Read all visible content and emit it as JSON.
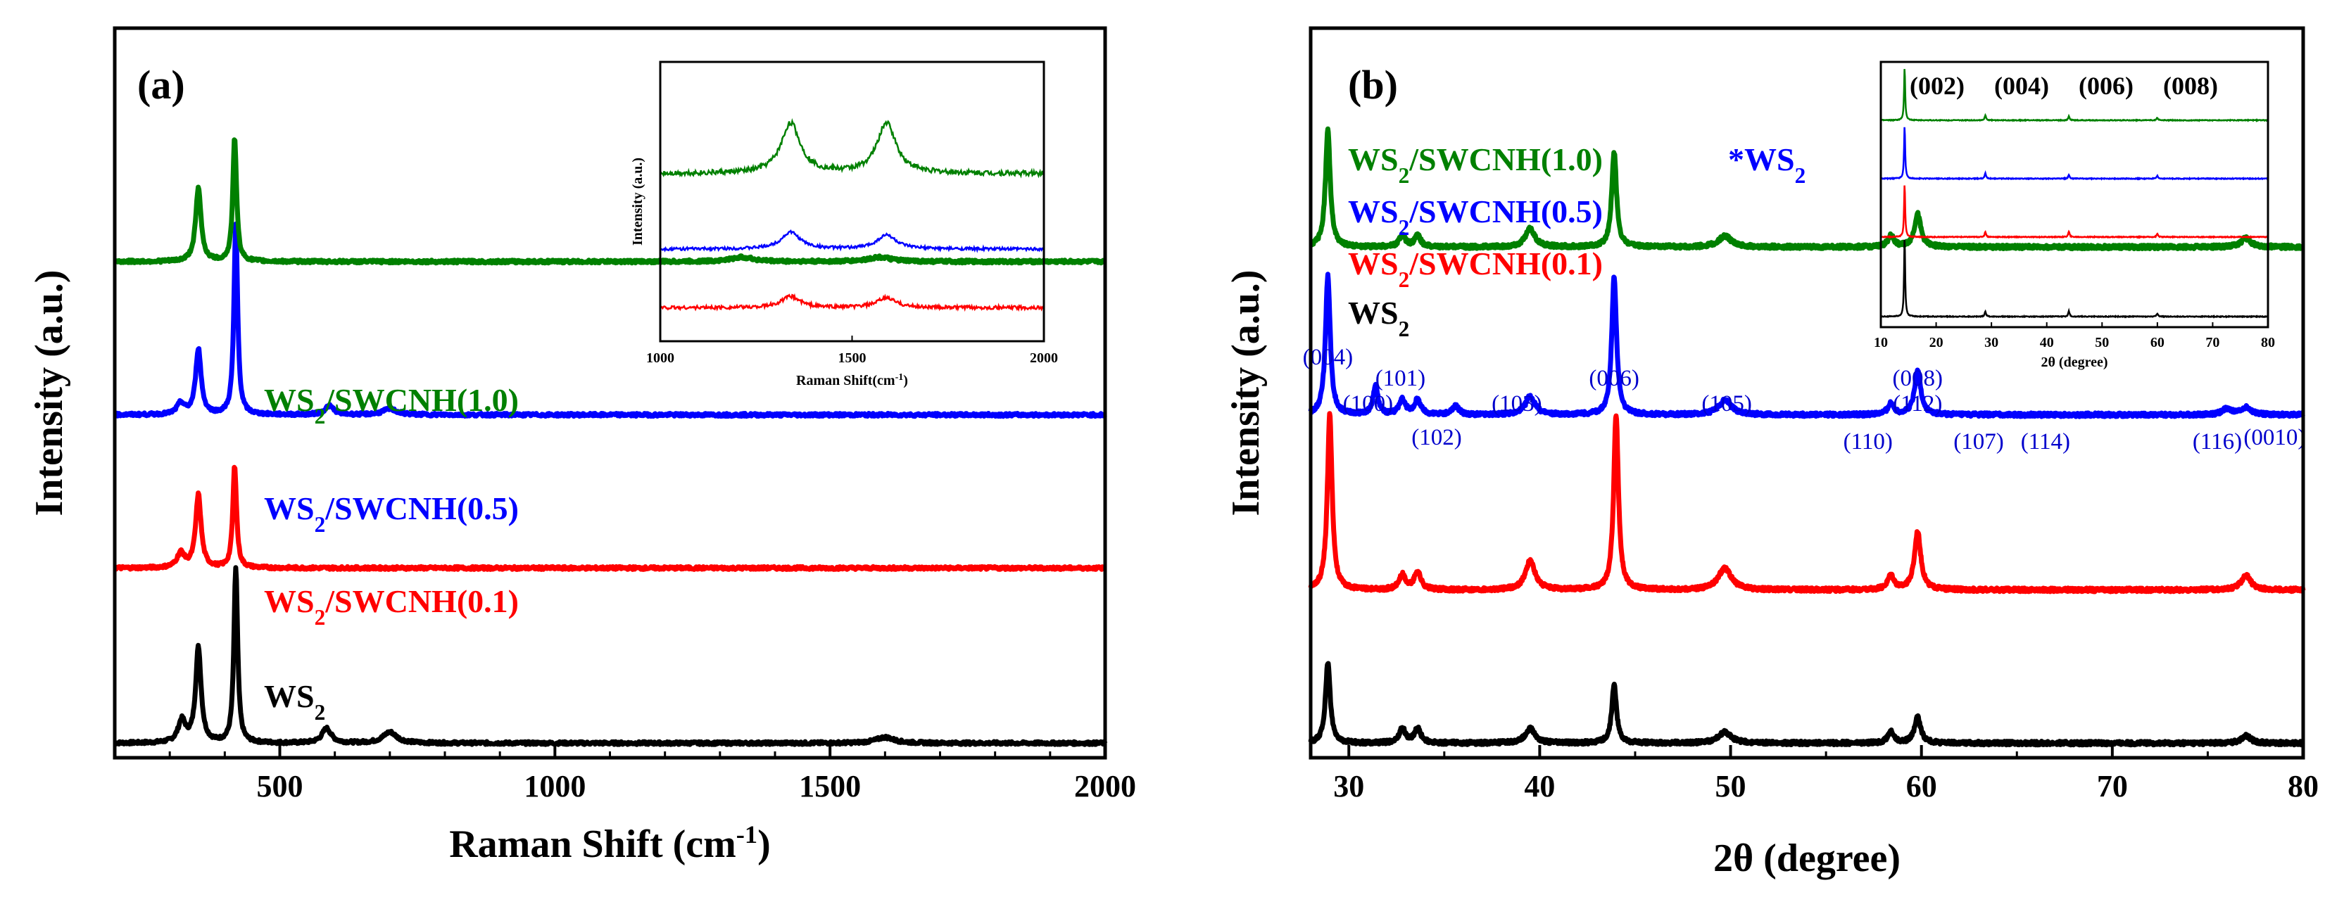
{
  "colors": {
    "WS2": "#000000",
    "WS2/SWCNH(0.1)": "#ff0000",
    "WS2/SWCNH(0.5)": "#0000ff",
    "WS2/SWCNH(1.0)": "#008000",
    "peak_label": "#0000cc"
  },
  "chart_data": [
    {
      "panel": "(a)",
      "type": "line",
      "xlabel": "Raman Shift (cm-1)",
      "ylabel": "Intensity (a.u.)",
      "xlim": [
        200,
        2000
      ],
      "xticks": [
        "500",
        "1000",
        "1500",
        "2000"
      ],
      "series": [
        {
          "name": "WS2",
          "label_main": "WS",
          "label_sub": "2",
          "label_rest": "",
          "color": "#000000",
          "baseline": 0.02,
          "peaks": [
            {
              "x": 352,
              "h": 0.13,
              "w": 6
            },
            {
              "x": 420,
              "h": 0.24,
              "w": 4
            },
            {
              "x": 322,
              "h": 0.03,
              "w": 8
            },
            {
              "x": 585,
              "h": 0.02,
              "w": 10
            },
            {
              "x": 700,
              "h": 0.015,
              "w": 15
            },
            {
              "x": 1600,
              "h": 0.008,
              "w": 20
            }
          ]
        },
        {
          "name": "WS2/SWCNH(0.1)",
          "label_main": "WS",
          "label_sub": "2",
          "label_rest": "/SWCNH(0.1)",
          "color": "#ff0000",
          "baseline": 0.26,
          "peaks": [
            {
              "x": 352,
              "h": 0.1,
              "w": 6
            },
            {
              "x": 418,
              "h": 0.14,
              "w": 4
            },
            {
              "x": 320,
              "h": 0.02,
              "w": 8
            }
          ]
        },
        {
          "name": "WS2/SWCNH(0.5)",
          "label_main": "WS",
          "label_sub": "2",
          "label_rest": "/SWCNH(0.5)",
          "color": "#0000ff",
          "baseline": 0.47,
          "peaks": [
            {
              "x": 352,
              "h": 0.09,
              "w": 6
            },
            {
              "x": 420,
              "h": 0.26,
              "w": 4
            },
            {
              "x": 320,
              "h": 0.015,
              "w": 8
            },
            {
              "x": 590,
              "h": 0.012,
              "w": 10
            },
            {
              "x": 700,
              "h": 0.008,
              "w": 15
            }
          ]
        },
        {
          "name": "WS2/SWCNH(1.0)",
          "label_main": "WS",
          "label_sub": "2",
          "label_rest": "/SWCNH(1.0)",
          "color": "#008000",
          "baseline": 0.68,
          "peaks": [
            {
              "x": 352,
              "h": 0.1,
              "w": 6
            },
            {
              "x": 418,
              "h": 0.17,
              "w": 4
            },
            {
              "x": 1340,
              "h": 0.006,
              "w": 25
            },
            {
              "x": 1590,
              "h": 0.006,
              "w": 25
            }
          ]
        }
      ],
      "inset": {
        "xlabel": "Raman Shift(cm-1)",
        "ylabel": "Intensity (a.u.)",
        "xlim": [
          1000,
          2000
        ],
        "xticks": [
          "1000",
          "1500",
          "2000"
        ],
        "series": [
          {
            "name": "WS2/SWCNH(1.0)",
            "color": "#008000",
            "baseline": 0.6,
            "noise": 0.018,
            "peaks": [
              {
                "x": 1340,
                "h": 0.18,
                "w": 30
              },
              {
                "x": 1590,
                "h": 0.18,
                "w": 30
              }
            ]
          },
          {
            "name": "WS2/SWCNH(0.5)",
            "color": "#0000ff",
            "baseline": 0.33,
            "noise": 0.01,
            "peaks": [
              {
                "x": 1340,
                "h": 0.06,
                "w": 30
              },
              {
                "x": 1590,
                "h": 0.05,
                "w": 30
              }
            ]
          },
          {
            "name": "WS2/SWCNH(0.1)",
            "color": "#ff0000",
            "baseline": 0.12,
            "noise": 0.012,
            "peaks": [
              {
                "x": 1340,
                "h": 0.04,
                "w": 30
              },
              {
                "x": 1590,
                "h": 0.035,
                "w": 30
              }
            ]
          }
        ]
      }
    },
    {
      "panel": "(b)",
      "type": "line",
      "xlabel": "2θ (degree)",
      "ylabel": "Intensity (a.u.)",
      "xlim": [
        28,
        80
      ],
      "xticks": [
        "30",
        "40",
        "50",
        "60",
        "70",
        "80"
      ],
      "legend": [
        {
          "label_main": "WS",
          "label_sub": "2",
          "label_rest": "/SWCNH(1.0)",
          "color": "#008000"
        },
        {
          "label_main": "WS",
          "label_sub": "2",
          "label_rest": "/SWCNH(0.5)",
          "color": "#0000ff"
        },
        {
          "label_main": "WS",
          "label_sub": "2",
          "label_rest": "/SWCNH(0.1)",
          "color": "#ff0000"
        },
        {
          "label_main": "WS",
          "label_sub": "2",
          "label_rest": "",
          "color": "#000000"
        }
      ],
      "star_note": {
        "main": "*WS",
        "sub": "2"
      },
      "series": [
        {
          "name": "WS2",
          "color": "#000000",
          "baseline": 0.02,
          "peaks": [
            {
              "x": 28.9,
              "h": 0.11,
              "w": 0.15
            },
            {
              "x": 32.8,
              "h": 0.02,
              "w": 0.2
            },
            {
              "x": 33.6,
              "h": 0.02,
              "w": 0.2
            },
            {
              "x": 39.5,
              "h": 0.02,
              "w": 0.3
            },
            {
              "x": 43.9,
              "h": 0.08,
              "w": 0.15
            },
            {
              "x": 49.7,
              "h": 0.015,
              "w": 0.4
            },
            {
              "x": 58.4,
              "h": 0.015,
              "w": 0.2
            },
            {
              "x": 59.8,
              "h": 0.035,
              "w": 0.2
            },
            {
              "x": 77,
              "h": 0.01,
              "w": 0.3
            }
          ]
        },
        {
          "name": "WS2/SWCNH(0.1)",
          "color": "#ff0000",
          "baseline": 0.23,
          "peaks": [
            {
              "x": 29.0,
              "h": 0.24,
              "w": 0.15
            },
            {
              "x": 32.8,
              "h": 0.02,
              "w": 0.2
            },
            {
              "x": 33.6,
              "h": 0.025,
              "w": 0.2
            },
            {
              "x": 39.5,
              "h": 0.04,
              "w": 0.3
            },
            {
              "x": 44.0,
              "h": 0.24,
              "w": 0.15
            },
            {
              "x": 49.7,
              "h": 0.03,
              "w": 0.4
            },
            {
              "x": 58.4,
              "h": 0.02,
              "w": 0.2
            },
            {
              "x": 59.8,
              "h": 0.08,
              "w": 0.2
            },
            {
              "x": 77,
              "h": 0.02,
              "w": 0.3
            }
          ]
        },
        {
          "name": "WS2/SWCNH(0.5)",
          "color": "#0000ff",
          "baseline": 0.47,
          "peaks": [
            {
              "x": 28.9,
              "h": 0.19,
              "w": 0.15
            },
            {
              "x": 31.4,
              "h": 0.04,
              "w": 0.15
            },
            {
              "x": 32.8,
              "h": 0.02,
              "w": 0.2
            },
            {
              "x": 33.6,
              "h": 0.02,
              "w": 0.2
            },
            {
              "x": 35.6,
              "h": 0.012,
              "w": 0.2
            },
            {
              "x": 39.5,
              "h": 0.025,
              "w": 0.3
            },
            {
              "x": 43.9,
              "h": 0.19,
              "w": 0.15
            },
            {
              "x": 49.7,
              "h": 0.02,
              "w": 0.4
            },
            {
              "x": 58.4,
              "h": 0.015,
              "w": 0.2
            },
            {
              "x": 59.8,
              "h": 0.06,
              "w": 0.2
            },
            {
              "x": 76,
              "h": 0.008,
              "w": 0.3
            },
            {
              "x": 77,
              "h": 0.01,
              "w": 0.3
            }
          ]
        },
        {
          "name": "WS2/SWCNH(1.0)",
          "color": "#008000",
          "baseline": 0.7,
          "peaks": [
            {
              "x": 28.9,
              "h": 0.16,
              "w": 0.15
            },
            {
              "x": 32.8,
              "h": 0.015,
              "w": 0.2
            },
            {
              "x": 33.6,
              "h": 0.015,
              "w": 0.2
            },
            {
              "x": 39.5,
              "h": 0.025,
              "w": 0.3
            },
            {
              "x": 43.9,
              "h": 0.13,
              "w": 0.15
            },
            {
              "x": 49.7,
              "h": 0.015,
              "w": 0.4
            },
            {
              "x": 58.4,
              "h": 0.015,
              "w": 0.2
            },
            {
              "x": 59.8,
              "h": 0.045,
              "w": 0.2
            },
            {
              "x": 77,
              "h": 0.012,
              "w": 0.3
            }
          ]
        }
      ],
      "peak_labels": [
        {
          "text": "(004)",
          "x": 28.9,
          "row": 0
        },
        {
          "text": "(101)",
          "x": 32.7,
          "row": 1
        },
        {
          "text": "(100)",
          "x": 31.0,
          "row": 2
        },
        {
          "text": "(102)",
          "x": 34.6,
          "row": 3
        },
        {
          "text": "(103)",
          "x": 38.8,
          "row": 2
        },
        {
          "text": "(006)",
          "x": 43.9,
          "row": 1
        },
        {
          "text": "(105)",
          "x": 49.8,
          "row": 2
        },
        {
          "text": "(110)",
          "x": 57.2,
          "row": 4
        },
        {
          "text": "(008)",
          "x": 59.8,
          "row": 1
        },
        {
          "text": "(112)",
          "x": 59.8,
          "row": 2
        },
        {
          "text": "(107)",
          "x": 63.0,
          "row": 4
        },
        {
          "text": "(114)",
          "x": 66.5,
          "row": 4
        },
        {
          "text": "(116)",
          "x": 75.5,
          "row": 4
        },
        {
          "text": "(0010)",
          "x": 78.5,
          "row": 3
        }
      ],
      "inset": {
        "xlabel": "2θ (degree)",
        "xlim": [
          10,
          80
        ],
        "xticks": [
          "10",
          "20",
          "30",
          "40",
          "50",
          "60",
          "70",
          "80"
        ],
        "hkl_labels": [
          "(002)",
          "(004)",
          "(006)",
          "(008)"
        ],
        "series": [
          {
            "name": "WS2/SWCNH(1.0)",
            "color": "#008000",
            "baseline": 0.78,
            "peaks": [
              {
                "x": 14.3,
                "h": 0.2,
                "w": 0.12
              },
              {
                "x": 28.9,
                "h": 0.02,
                "w": 0.15
              },
              {
                "x": 44,
                "h": 0.015,
                "w": 0.15
              },
              {
                "x": 60,
                "h": 0.01,
                "w": 0.15
              }
            ]
          },
          {
            "name": "WS2/SWCNH(0.5)",
            "color": "#0000ff",
            "baseline": 0.56,
            "peaks": [
              {
                "x": 14.3,
                "h": 0.2,
                "w": 0.12
              },
              {
                "x": 28.9,
                "h": 0.02,
                "w": 0.15
              },
              {
                "x": 44,
                "h": 0.015,
                "w": 0.15
              },
              {
                "x": 60,
                "h": 0.01,
                "w": 0.15
              }
            ]
          },
          {
            "name": "WS2/SWCNH(0.1)",
            "color": "#ff0000",
            "baseline": 0.34,
            "peaks": [
              {
                "x": 14.3,
                "h": 0.2,
                "w": 0.12
              },
              {
                "x": 28.9,
                "h": 0.02,
                "w": 0.15
              },
              {
                "x": 44,
                "h": 0.02,
                "w": 0.15
              },
              {
                "x": 60,
                "h": 0.012,
                "w": 0.15
              }
            ]
          },
          {
            "name": "WS2",
            "color": "#000000",
            "baseline": 0.04,
            "peaks": [
              {
                "x": 14.3,
                "h": 0.3,
                "w": 0.12
              },
              {
                "x": 28.9,
                "h": 0.02,
                "w": 0.15
              },
              {
                "x": 44,
                "h": 0.02,
                "w": 0.15
              },
              {
                "x": 60,
                "h": 0.012,
                "w": 0.15
              }
            ]
          }
        ]
      }
    }
  ]
}
